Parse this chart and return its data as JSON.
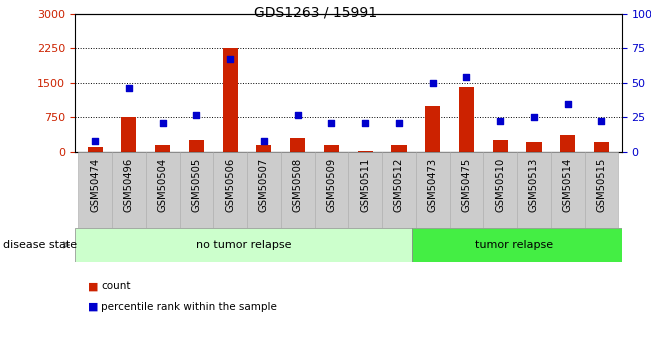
{
  "title": "GDS1263 / 15991",
  "samples": [
    "GSM50474",
    "GSM50496",
    "GSM50504",
    "GSM50505",
    "GSM50506",
    "GSM50507",
    "GSM50508",
    "GSM50509",
    "GSM50511",
    "GSM50512",
    "GSM50473",
    "GSM50475",
    "GSM50510",
    "GSM50513",
    "GSM50514",
    "GSM50515"
  ],
  "counts": [
    110,
    750,
    150,
    260,
    2250,
    155,
    310,
    155,
    20,
    155,
    1000,
    1400,
    255,
    205,
    355,
    205
  ],
  "percentiles": [
    8,
    46,
    21,
    27,
    67,
    8,
    27,
    21,
    21,
    21,
    50,
    54,
    22,
    25,
    35,
    22
  ],
  "no_tumor_count": 10,
  "ylim_left": [
    0,
    3000
  ],
  "ylim_right": [
    0,
    100
  ],
  "left_yticks": [
    0,
    750,
    1500,
    2250,
    3000
  ],
  "right_yticks": [
    0,
    25,
    50,
    75,
    100
  ],
  "right_yticklabels": [
    "0",
    "25",
    "50",
    "75",
    "100%"
  ],
  "bar_color": "#cc2200",
  "dot_color": "#0000cc",
  "no_tumor_bg": "#ccffcc",
  "tumor_bg": "#44ee44",
  "cell_bg": "#cccccc",
  "legend_count_label": "count",
  "legend_percentile_label": "percentile rank within the sample",
  "disease_state_label": "disease state",
  "no_tumor_label": "no tumor relapse",
  "tumor_label": "tumor relapse"
}
